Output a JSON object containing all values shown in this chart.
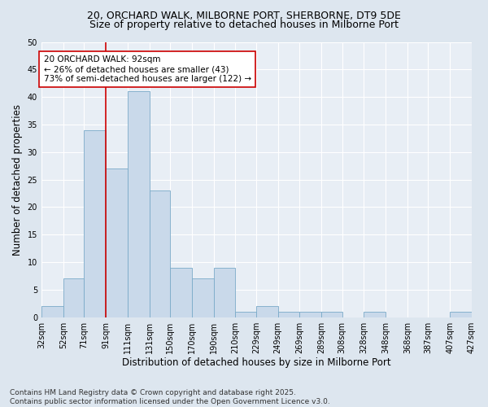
{
  "title1": "20, ORCHARD WALK, MILBORNE PORT, SHERBORNE, DT9 5DE",
  "title2": "Size of property relative to detached houses in Milborne Port",
  "xlabel": "Distribution of detached houses by size in Milborne Port",
  "ylabel": "Number of detached properties",
  "bins": [
    32,
    52,
    71,
    91,
    111,
    131,
    150,
    170,
    190,
    210,
    229,
    249,
    269,
    289,
    308,
    328,
    348,
    368,
    387,
    407,
    427
  ],
  "bin_labels": [
    "32sqm",
    "52sqm",
    "71sqm",
    "91sqm",
    "111sqm",
    "131sqm",
    "150sqm",
    "170sqm",
    "190sqm",
    "210sqm",
    "229sqm",
    "249sqm",
    "269sqm",
    "289sqm",
    "308sqm",
    "328sqm",
    "348sqm",
    "368sqm",
    "387sqm",
    "407sqm",
    "427sqm"
  ],
  "counts": [
    2,
    7,
    34,
    27,
    41,
    23,
    9,
    7,
    9,
    1,
    2,
    1,
    1,
    1,
    0,
    1,
    0,
    0,
    0,
    1
  ],
  "bar_color": "#c9d9ea",
  "bar_edge_color": "#7aaac8",
  "vline_x": 91,
  "vline_color": "#cc0000",
  "annotation_text": "20 ORCHARD WALK: 92sqm\n← 26% of detached houses are smaller (43)\n73% of semi-detached houses are larger (122) →",
  "annotation_box_color": "#ffffff",
  "annotation_box_edge_color": "#cc0000",
  "ylim": [
    0,
    50
  ],
  "yticks": [
    0,
    5,
    10,
    15,
    20,
    25,
    30,
    35,
    40,
    45,
    50
  ],
  "bg_color": "#dde6ef",
  "plot_bg_color": "#e8eef5",
  "footer_text": "Contains HM Land Registry data © Crown copyright and database right 2025.\nContains public sector information licensed under the Open Government Licence v3.0.",
  "title_fontsize": 9,
  "subtitle_fontsize": 9,
  "axis_label_fontsize": 8.5,
  "tick_fontsize": 7,
  "annotation_fontsize": 7.5,
  "footer_fontsize": 6.5
}
